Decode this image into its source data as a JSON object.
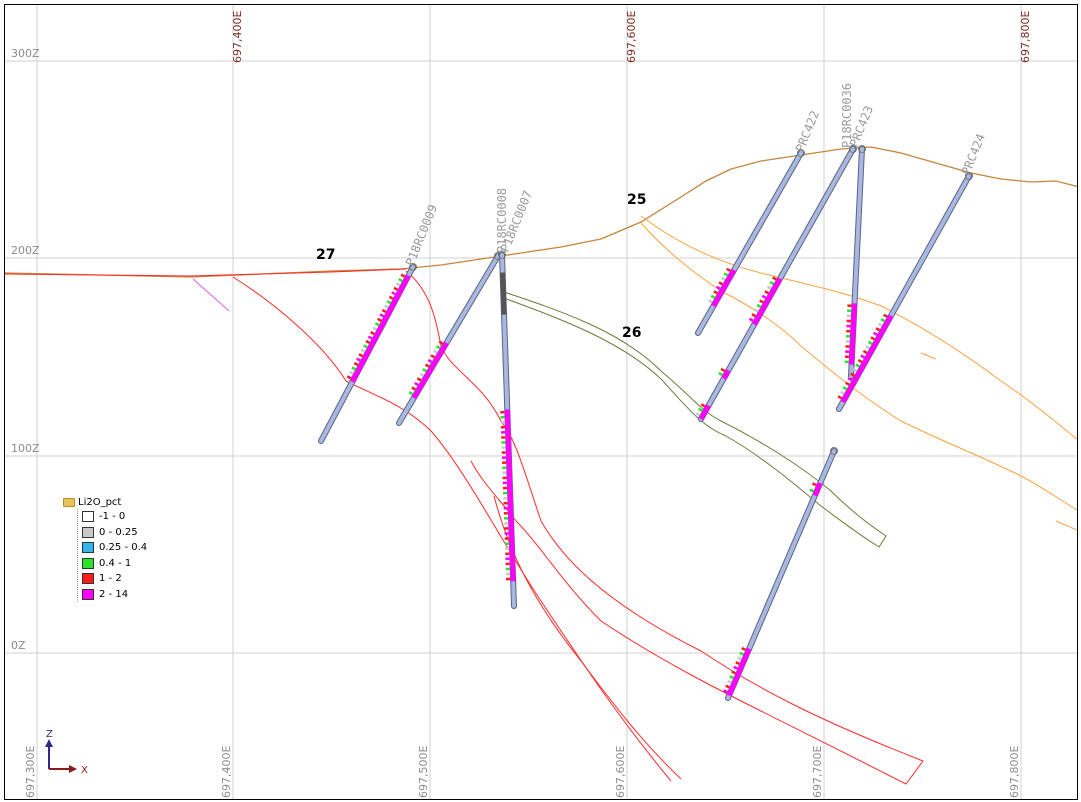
{
  "z_labels": [
    "300Z",
    "200Z",
    "100Z",
    "0Z"
  ],
  "easting_top_labels": [
    "697,400E",
    "697,600E",
    "697,800E"
  ],
  "easting_bottom_labels": [
    "697,300E",
    "697,400E",
    "697,500E",
    "697,600E",
    "697,700E",
    "697,800E"
  ],
  "drillholes": [
    "P18RC0009",
    "P18RC0008",
    "P18RC0007",
    "PRC422",
    "P18RC0036",
    "PRC423",
    "PRC424"
  ],
  "section_labels": [
    "27",
    "25",
    "26"
  ],
  "legend": {
    "title": "Li2O_pct",
    "items": [
      {
        "label": "-1 - 0",
        "color": "#ffffff"
      },
      {
        "label": "0 - 0.25",
        "color": "#c8c8c8"
      },
      {
        "label": "0.25 - 0.4",
        "color": "#33b6ea"
      },
      {
        "label": "0.4 - 1",
        "color": "#2ee02e"
      },
      {
        "label": "1 - 2",
        "color": "#ff1a1a"
      },
      {
        "label": "2 - 14",
        "color": "#ff00ff"
      }
    ]
  },
  "axis_indicator": {
    "z": "Z",
    "x": "X"
  },
  "colors": {
    "topography": "#c8843a",
    "contact_red": "#ff2a2a",
    "contact_orange": "#ffa040",
    "contact_olive": "#6f7a3c",
    "drill_trace": "#a8b8e0"
  }
}
